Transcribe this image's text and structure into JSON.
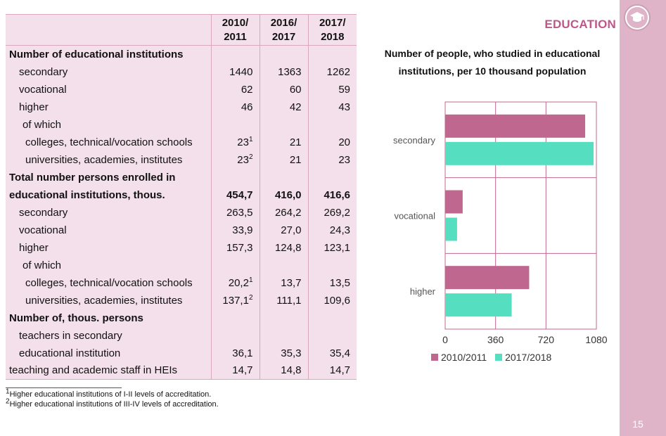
{
  "section_title": "EDUCATION",
  "page_number": "15",
  "icon": "graduation-cap-icon",
  "table": {
    "headers": [
      "",
      "2010/\n2011",
      "2016/\n2017",
      "2017/\n2018"
    ],
    "header_lines": [
      [
        "2010/",
        "2011"
      ],
      [
        "2016/",
        "2017"
      ],
      [
        "2017/",
        "2018"
      ]
    ],
    "rows": [
      {
        "label": "Number of educational institutions",
        "style": "bold",
        "values": [
          "",
          "",
          ""
        ]
      },
      {
        "label": "secondary",
        "style": "ind1",
        "values": [
          "1440",
          "1363",
          "1262"
        ]
      },
      {
        "label": "vocational",
        "style": "ind1",
        "values": [
          "62",
          "60",
          "59"
        ]
      },
      {
        "label": "higher",
        "style": "ind1",
        "values": [
          "46",
          "42",
          "43"
        ]
      },
      {
        "label": "of which",
        "style": "ind2",
        "values": [
          "",
          "",
          ""
        ]
      },
      {
        "label": "colleges, technical/vocation schools",
        "style": "ind3",
        "values": [
          "23",
          "21",
          "20"
        ],
        "sup": "1"
      },
      {
        "label": "universities, academies, institutes",
        "style": "ind3",
        "values": [
          "23",
          "21",
          "23"
        ],
        "sup": "2"
      },
      {
        "label": "Total number persons enrolled in",
        "style": "bold",
        "values": [
          "",
          "",
          ""
        ]
      },
      {
        "label": "educational institutions, thous.",
        "style": "bold",
        "values": [
          "454,7",
          "416,0",
          "416,6"
        ],
        "bold_values": true
      },
      {
        "label": "secondary",
        "style": "ind1",
        "values": [
          "263,5",
          "264,2",
          "269,2"
        ]
      },
      {
        "label": "vocational",
        "style": "ind1",
        "values": [
          "33,9",
          "27,0",
          "24,3"
        ]
      },
      {
        "label": "higher",
        "style": "ind1",
        "values": [
          "157,3",
          "124,8",
          "123,1"
        ]
      },
      {
        "label": "of which",
        "style": "ind2",
        "values": [
          "",
          "",
          ""
        ]
      },
      {
        "label": "colleges, technical/vocation schools",
        "style": "ind3",
        "values": [
          "20,2",
          "13,7",
          "13,5"
        ],
        "sup": "1"
      },
      {
        "label": "universities, academies, institutes",
        "style": "ind3",
        "values": [
          "137,1",
          "111,1",
          "109,6"
        ],
        "sup": "2"
      },
      {
        "label": "Number of, thous. persons",
        "style": "bold",
        "values": [
          "",
          "",
          ""
        ]
      },
      {
        "label": "teachers in secondary",
        "style": "ind1",
        "values": [
          "",
          "",
          ""
        ]
      },
      {
        "label": "educational institution",
        "style": "ind1",
        "values": [
          "36,1",
          "35,3",
          "35,4"
        ]
      },
      {
        "label": "teaching and academic  staff in HEIs",
        "style": "",
        "values": [
          "14,7",
          "14,8",
          "14,7"
        ]
      }
    ]
  },
  "footnotes": [
    {
      "mark": "1",
      "text": "Higher educational institutions of I-II levels of accreditation."
    },
    {
      "mark": "2",
      "text": "Higher educational institutions of III-IV levels of accreditation."
    }
  ],
  "chart_data": {
    "type": "bar",
    "orientation": "horizontal",
    "title": "Number of people, who studied in educational institutions, per 10 thousand population",
    "title_lines": [
      "Number of people, who studied in educational",
      "institutions, per 10 thousand population"
    ],
    "categories": [
      "secondary",
      "vocational",
      "higher"
    ],
    "series": [
      {
        "name": "2010/2011",
        "color": "#c0678f",
        "values": [
          1000,
          125,
          600
        ]
      },
      {
        "name": "2017/2018",
        "color": "#55dfc0",
        "values": [
          1060,
          85,
          475
        ]
      }
    ],
    "xlim": [
      0,
      1080
    ],
    "xticks": [
      "0",
      "360",
      "720",
      "1080"
    ],
    "tick_values": [
      0,
      360,
      720,
      1080
    ],
    "grid": true,
    "legend_position": "bottom"
  }
}
